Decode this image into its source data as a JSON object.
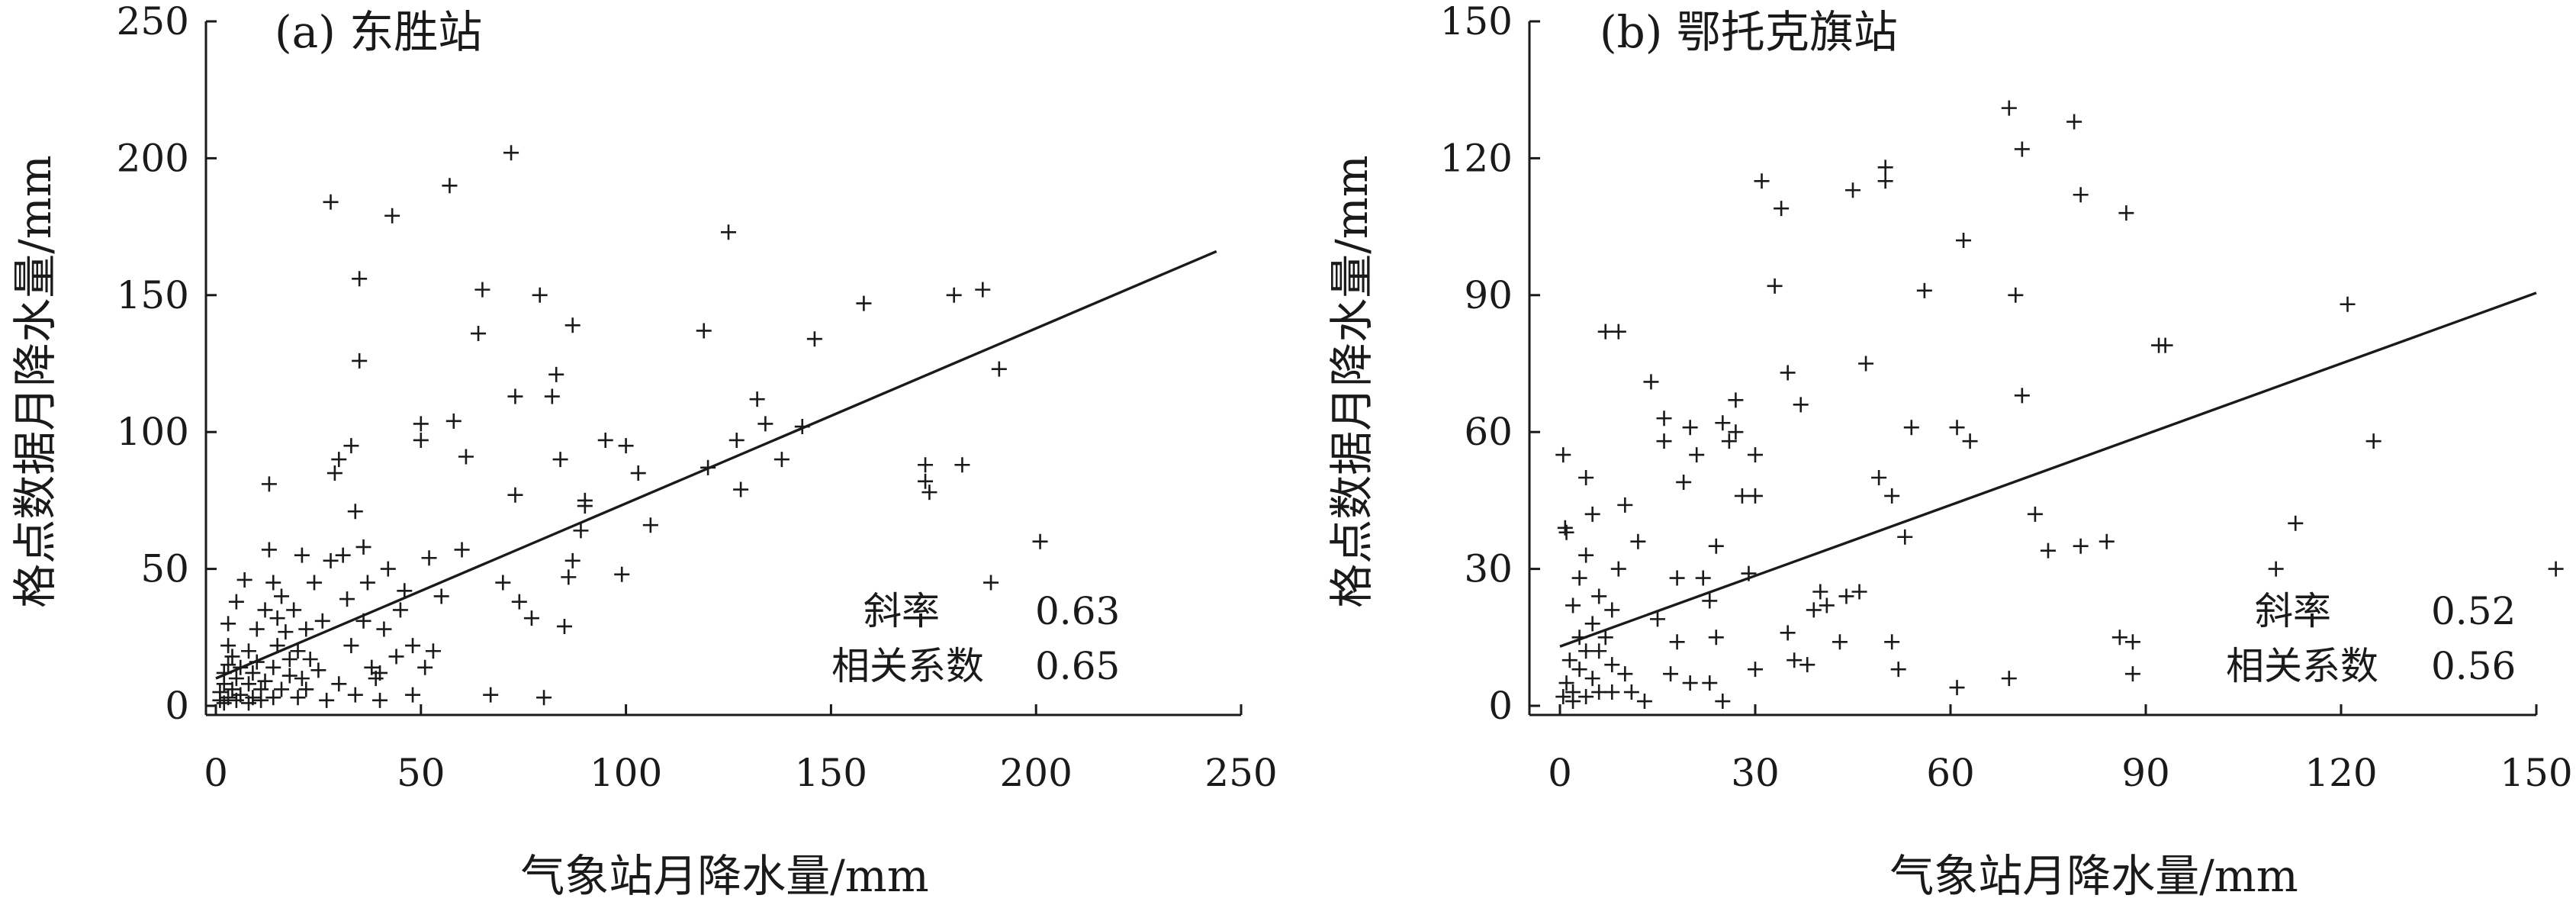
{
  "chart_data": [
    {
      "type": "scatter",
      "title": "(a) 东胜站",
      "xlabel": "气象站月降水量/mm",
      "ylabel": "格点数据月降水量/mm",
      "xlim": [
        0,
        250
      ],
      "ylim": [
        0,
        250
      ],
      "xticks": [
        "0",
        "50",
        "100",
        "150",
        "200",
        "250"
      ],
      "yticks": [
        "0",
        "50",
        "100",
        "150",
        "200",
        "250"
      ],
      "xtick_values": [
        0,
        50,
        100,
        150,
        200,
        250
      ],
      "ytick_values": [
        0,
        50,
        100,
        150,
        200,
        250
      ],
      "fit_line": {
        "x": [
          0,
          244
        ],
        "y": [
          10,
          166
        ]
      },
      "stats": [
        {
          "label": "斜率",
          "value": "0.63"
        },
        {
          "label": "相关系数",
          "value": "0.65"
        }
      ],
      "points": [
        [
          1,
          2
        ],
        [
          1,
          5
        ],
        [
          2,
          1
        ],
        [
          2,
          8
        ],
        [
          2,
          12
        ],
        [
          3,
          3
        ],
        [
          3,
          15
        ],
        [
          3,
          22
        ],
        [
          3,
          30
        ],
        [
          4,
          6
        ],
        [
          4,
          18
        ],
        [
          5,
          2
        ],
        [
          5,
          10
        ],
        [
          5,
          38
        ],
        [
          6,
          4
        ],
        [
          6,
          14
        ],
        [
          7,
          46
        ],
        [
          8,
          1
        ],
        [
          8,
          8
        ],
        [
          8,
          20
        ],
        [
          9,
          3
        ],
        [
          9,
          12
        ],
        [
          10,
          16
        ],
        [
          10,
          28
        ],
        [
          11,
          2
        ],
        [
          11,
          6
        ],
        [
          12,
          9
        ],
        [
          12,
          35
        ],
        [
          13,
          81
        ],
        [
          13,
          57
        ],
        [
          14,
          3
        ],
        [
          14,
          14
        ],
        [
          14,
          45
        ],
        [
          15,
          22
        ],
        [
          15,
          32
        ],
        [
          16,
          6
        ],
        [
          16,
          40
        ],
        [
          17,
          27
        ],
        [
          18,
          11
        ],
        [
          18,
          17
        ],
        [
          19,
          35
        ],
        [
          20,
          3
        ],
        [
          20,
          20
        ],
        [
          21,
          10
        ],
        [
          21,
          55
        ],
        [
          22,
          6
        ],
        [
          22,
          28
        ],
        [
          23,
          17
        ],
        [
          24,
          45
        ],
        [
          25,
          13
        ],
        [
          26,
          31
        ],
        [
          27,
          2
        ],
        [
          28,
          53
        ],
        [
          28,
          184
        ],
        [
          29,
          85
        ],
        [
          30,
          8
        ],
        [
          30,
          90
        ],
        [
          31,
          55
        ],
        [
          32,
          39
        ],
        [
          33,
          95
        ],
        [
          33,
          22
        ],
        [
          34,
          71
        ],
        [
          34,
          4
        ],
        [
          35,
          126
        ],
        [
          35,
          156
        ],
        [
          36,
          58
        ],
        [
          36,
          31
        ],
        [
          37,
          45
        ],
        [
          38,
          14
        ],
        [
          39,
          10
        ],
        [
          40,
          12
        ],
        [
          40,
          2
        ],
        [
          41,
          28
        ],
        [
          42,
          50
        ],
        [
          43,
          179
        ],
        [
          44,
          18
        ],
        [
          45,
          35
        ],
        [
          46,
          42
        ],
        [
          48,
          4
        ],
        [
          48,
          22
        ],
        [
          50,
          103
        ],
        [
          50,
          97
        ],
        [
          51,
          14
        ],
        [
          52,
          54
        ],
        [
          53,
          20
        ],
        [
          55,
          40
        ],
        [
          57,
          190
        ],
        [
          58,
          104
        ],
        [
          60,
          57
        ],
        [
          61,
          91
        ],
        [
          64,
          136
        ],
        [
          65,
          152
        ],
        [
          67,
          4
        ],
        [
          70,
          45
        ],
        [
          72,
          202
        ],
        [
          73,
          113
        ],
        [
          73,
          77
        ],
        [
          74,
          38
        ],
        [
          77,
          32
        ],
        [
          79,
          150
        ],
        [
          80,
          3
        ],
        [
          82,
          113
        ],
        [
          83,
          121
        ],
        [
          84,
          90
        ],
        [
          85,
          29
        ],
        [
          86,
          47
        ],
        [
          87,
          139
        ],
        [
          87,
          53
        ],
        [
          89,
          64
        ],
        [
          90,
          75
        ],
        [
          90,
          73
        ],
        [
          95,
          97
        ],
        [
          99,
          48
        ],
        [
          100,
          95
        ],
        [
          103,
          85
        ],
        [
          106,
          66
        ],
        [
          119,
          137
        ],
        [
          120,
          87
        ],
        [
          125,
          173
        ],
        [
          127,
          97
        ],
        [
          128,
          79
        ],
        [
          132,
          112
        ],
        [
          134,
          103
        ],
        [
          138,
          90
        ],
        [
          143,
          102
        ],
        [
          146,
          134
        ],
        [
          158,
          147
        ],
        [
          173,
          88
        ],
        [
          173,
          82
        ],
        [
          174,
          78
        ],
        [
          180,
          150
        ],
        [
          182,
          88
        ],
        [
          187,
          152
        ],
        [
          189,
          45
        ],
        [
          191,
          123
        ],
        [
          201,
          60
        ]
      ]
    },
    {
      "type": "scatter",
      "title": "(b) 鄂托克旗站",
      "xlabel": "气象站月降水量/mm",
      "ylabel": "格点数据月降水量/mm",
      "xlim": [
        0,
        150
      ],
      "ylim": [
        0,
        150
      ],
      "xticks": [
        "0",
        "30",
        "60",
        "90",
        "120",
        "150"
      ],
      "yticks": [
        "0",
        "30",
        "60",
        "90",
        "120",
        "150"
      ],
      "xtick_values": [
        0,
        30,
        60,
        90,
        120,
        150
      ],
      "ytick_values": [
        0,
        30,
        60,
        90,
        120,
        150
      ],
      "fit_line": {
        "x": [
          0,
          150
        ],
        "y": [
          13,
          90.5
        ]
      },
      "stats": [
        {
          "label": "斜率",
          "value": "0.52"
        },
        {
          "label": "相关系数",
          "value": "0.56"
        }
      ],
      "points": [
        [
          0.5,
          2
        ],
        [
          0.5,
          55
        ],
        [
          0.8,
          39
        ],
        [
          1,
          38
        ],
        [
          1,
          5
        ],
        [
          1.5,
          10
        ],
        [
          2,
          1
        ],
        [
          2,
          22
        ],
        [
          2,
          3
        ],
        [
          3,
          15
        ],
        [
          3,
          8
        ],
        [
          3,
          28
        ],
        [
          4,
          2
        ],
        [
          4,
          12
        ],
        [
          4,
          33
        ],
        [
          4,
          50
        ],
        [
          5,
          6
        ],
        [
          5,
          42
        ],
        [
          5,
          18
        ],
        [
          6,
          3
        ],
        [
          6,
          24
        ],
        [
          6,
          12
        ],
        [
          7,
          82
        ],
        [
          7,
          15
        ],
        [
          8,
          3
        ],
        [
          8,
          9
        ],
        [
          8,
          21
        ],
        [
          9,
          82
        ],
        [
          9,
          30
        ],
        [
          10,
          44
        ],
        [
          10,
          7
        ],
        [
          11,
          3
        ],
        [
          12,
          36
        ],
        [
          13,
          1
        ],
        [
          14,
          71
        ],
        [
          15,
          19
        ],
        [
          16,
          63
        ],
        [
          16,
          58
        ],
        [
          17,
          7
        ],
        [
          18,
          14
        ],
        [
          18,
          28
        ],
        [
          19,
          49
        ],
        [
          20,
          5
        ],
        [
          20,
          61
        ],
        [
          21,
          55
        ],
        [
          22,
          28
        ],
        [
          23,
          5
        ],
        [
          23,
          23
        ],
        [
          24,
          35
        ],
        [
          24,
          15
        ],
        [
          25,
          1
        ],
        [
          25,
          62
        ],
        [
          26,
          58
        ],
        [
          27,
          60
        ],
        [
          27,
          67
        ],
        [
          28,
          46
        ],
        [
          29,
          29
        ],
        [
          30,
          8
        ],
        [
          30,
          55
        ],
        [
          30,
          46
        ],
        [
          31,
          115
        ],
        [
          33,
          92
        ],
        [
          34,
          109
        ],
        [
          35,
          73
        ],
        [
          35,
          16
        ],
        [
          36,
          10
        ],
        [
          37,
          66
        ],
        [
          38,
          9
        ],
        [
          39,
          21
        ],
        [
          40,
          25
        ],
        [
          41,
          22
        ],
        [
          43,
          14
        ],
        [
          44,
          24
        ],
        [
          45,
          113
        ],
        [
          46,
          25
        ],
        [
          47,
          75
        ],
        [
          49,
          50
        ],
        [
          50,
          115
        ],
        [
          50,
          118
        ],
        [
          51,
          46
        ],
        [
          51,
          14
        ],
        [
          52,
          8
        ],
        [
          53,
          37
        ],
        [
          54,
          61
        ],
        [
          56,
          91
        ],
        [
          61,
          4
        ],
        [
          61,
          61
        ],
        [
          62,
          102
        ],
        [
          63,
          58
        ],
        [
          69,
          131
        ],
        [
          69,
          6
        ],
        [
          70,
          90
        ],
        [
          71,
          68
        ],
        [
          71,
          122
        ],
        [
          73,
          42
        ],
        [
          75,
          34
        ],
        [
          79,
          128
        ],
        [
          80,
          112
        ],
        [
          80,
          35
        ],
        [
          84,
          36
        ],
        [
          86,
          15
        ],
        [
          87,
          108
        ],
        [
          88,
          7
        ],
        [
          88,
          14
        ],
        [
          92,
          79
        ],
        [
          93,
          79
        ],
        [
          110,
          30
        ],
        [
          113,
          40
        ],
        [
          121,
          88
        ],
        [
          125,
          58
        ],
        [
          153,
          30
        ]
      ]
    }
  ]
}
